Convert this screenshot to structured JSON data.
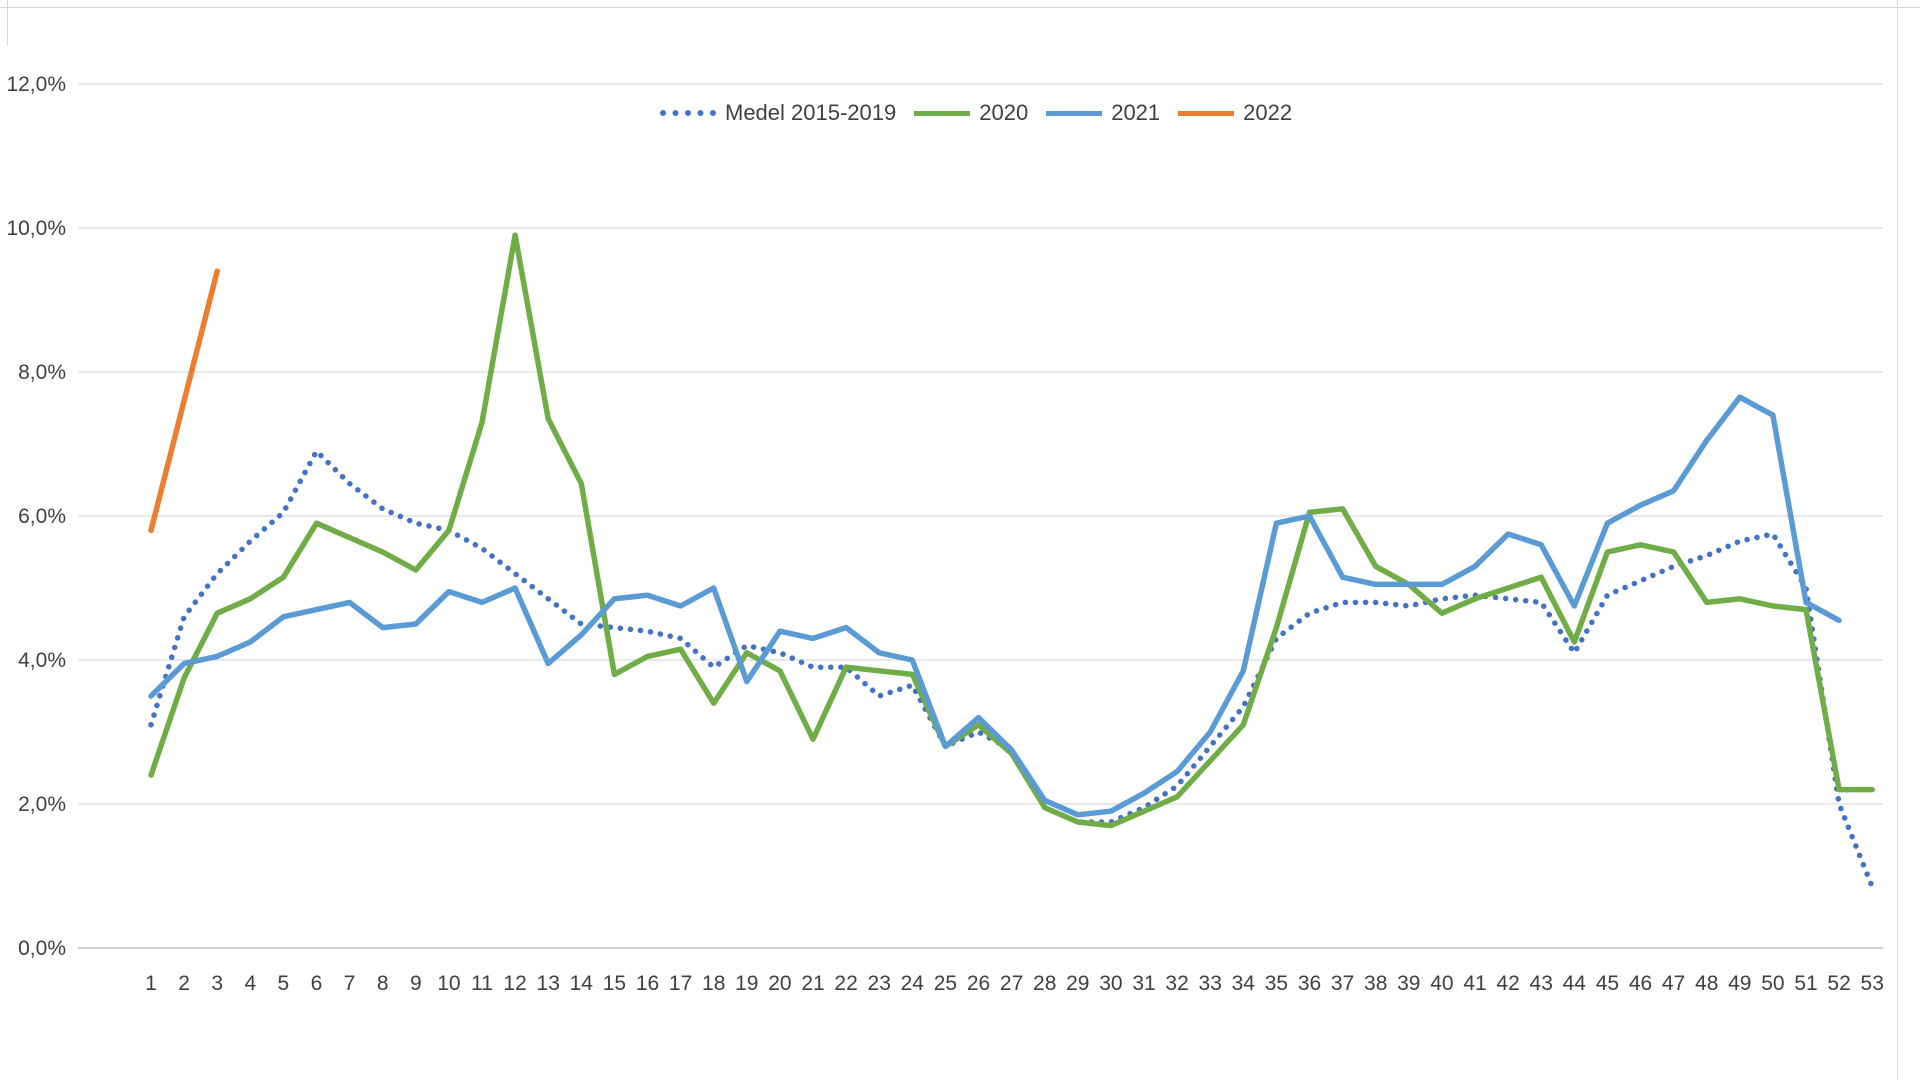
{
  "chart_data": {
    "type": "line",
    "title": "",
    "xlabel": "",
    "ylabel": "",
    "x": [
      1,
      2,
      3,
      4,
      5,
      6,
      7,
      8,
      9,
      10,
      11,
      12,
      13,
      14,
      15,
      16,
      17,
      18,
      19,
      20,
      21,
      22,
      23,
      24,
      25,
      26,
      27,
      28,
      29,
      30,
      31,
      32,
      33,
      34,
      35,
      36,
      37,
      38,
      39,
      40,
      41,
      42,
      43,
      44,
      45,
      46,
      47,
      48,
      49,
      50,
      51,
      52,
      53
    ],
    "x_unit": "week-number",
    "ylim": [
      0,
      12
    ],
    "grid": "horizontal",
    "legend_position": "top-center",
    "y_ticks": {
      "values": [
        0,
        2,
        4,
        6,
        8,
        10,
        12
      ],
      "labels": [
        "0,0%",
        "2,0%",
        "4,0%",
        "6,0%",
        "8,0%",
        "10,0%",
        "12,0%"
      ]
    },
    "series": [
      {
        "name": "Medel 2015-2019",
        "style": "dotted",
        "color": "#4472C4",
        "values": [
          3.1,
          4.6,
          5.2,
          5.65,
          6.05,
          6.9,
          6.45,
          6.1,
          5.9,
          5.8,
          5.55,
          5.2,
          4.85,
          4.5,
          4.45,
          4.4,
          4.3,
          3.9,
          4.2,
          4.1,
          3.9,
          3.9,
          3.5,
          3.65,
          2.8,
          3.0,
          2.75,
          1.95,
          1.75,
          1.75,
          1.95,
          2.25,
          2.8,
          3.35,
          4.3,
          4.65,
          4.8,
          4.8,
          4.75,
          4.85,
          4.9,
          4.85,
          4.8,
          4.1,
          4.9,
          5.1,
          5.3,
          5.45,
          5.65,
          5.75,
          5.0,
          2.0,
          0.85
        ]
      },
      {
        "name": "2020",
        "style": "solid",
        "color": "#70AD47",
        "values": [
          2.4,
          3.75,
          4.65,
          4.85,
          5.15,
          5.9,
          5.7,
          5.5,
          5.25,
          5.8,
          7.3,
          9.9,
          7.35,
          6.45,
          3.8,
          4.05,
          4.15,
          3.4,
          4.1,
          3.85,
          2.9,
          3.9,
          3.85,
          3.8,
          2.8,
          3.1,
          2.7,
          1.95,
          1.75,
          1.7,
          1.9,
          2.1,
          2.6,
          3.1,
          4.45,
          6.05,
          6.1,
          5.3,
          5.05,
          4.65,
          4.85,
          5.0,
          5.15,
          4.25,
          5.5,
          5.6,
          5.5,
          4.8,
          4.85,
          4.75,
          4.7,
          2.2,
          2.2
        ]
      },
      {
        "name": "2021",
        "style": "solid",
        "color": "#5B9BD5",
        "values": [
          3.5,
          3.95,
          4.05,
          4.25,
          4.6,
          4.7,
          4.8,
          4.45,
          4.5,
          4.95,
          4.8,
          5.0,
          3.95,
          4.35,
          4.85,
          4.9,
          4.75,
          5.0,
          3.7,
          4.4,
          4.3,
          4.45,
          4.1,
          4.0,
          2.8,
          3.2,
          2.75,
          2.05,
          1.85,
          1.9,
          2.15,
          2.45,
          3.0,
          3.85,
          5.9,
          6.0,
          5.15,
          5.05,
          5.05,
          5.05,
          5.3,
          5.75,
          5.6,
          4.75,
          5.9,
          6.15,
          6.35,
          7.05,
          7.65,
          7.4,
          4.8,
          4.55,
          null
        ]
      },
      {
        "name": "2022",
        "style": "solid",
        "color": "#ED7D31",
        "values": [
          5.8,
          7.6,
          9.4,
          null,
          null,
          null,
          null,
          null,
          null,
          null,
          null,
          null,
          null,
          null,
          null,
          null,
          null,
          null,
          null,
          null,
          null,
          null,
          null,
          null,
          null,
          null,
          null,
          null,
          null,
          null,
          null,
          null,
          null,
          null,
          null,
          null,
          null,
          null,
          null,
          null,
          null,
          null,
          null,
          null,
          null,
          null,
          null,
          null,
          null,
          null,
          null,
          null,
          null
        ]
      }
    ]
  },
  "style": {
    "gridline_color": "#D9D9D9",
    "baseline_color": "#BFBFBF",
    "tick_label_color": "#404040",
    "legend_text_color": "#404040",
    "background": "#FFFFFF"
  }
}
